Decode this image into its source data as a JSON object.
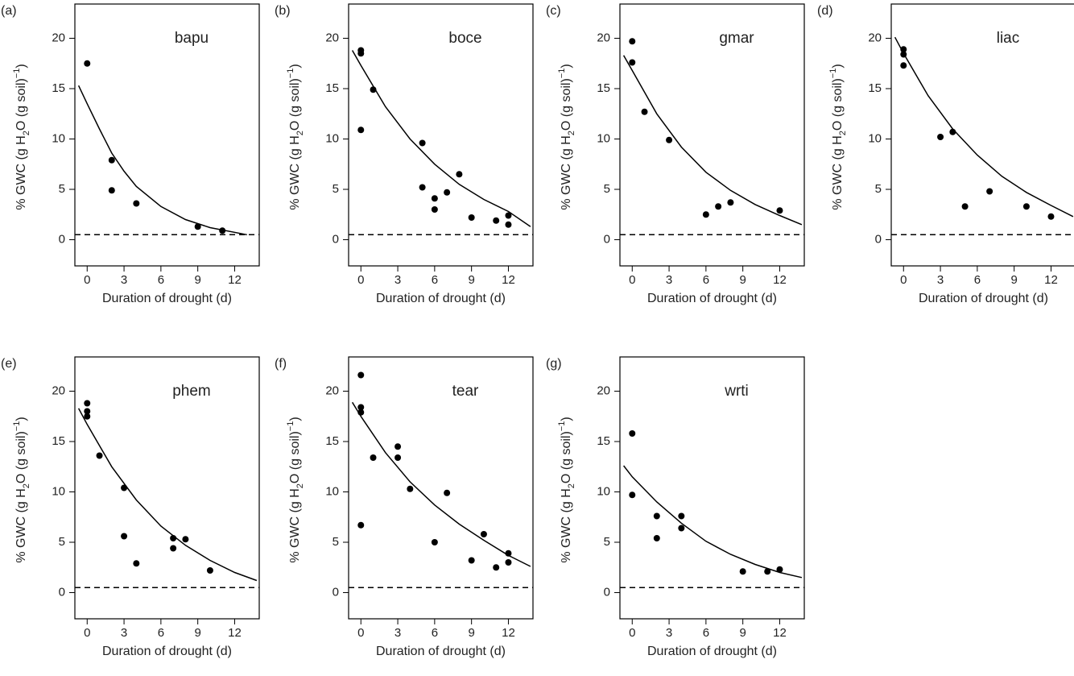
{
  "chart_data": [
    {
      "type": "scatter",
      "panel": "(a)",
      "title": "bapu",
      "x_label": "Duration of drought (d)",
      "y_label": [
        "% GWC (g  H",
        "2",
        "O (g soil)",
        "−1",
        ")"
      ],
      "x": [
        0,
        2,
        2,
        4,
        9,
        11
      ],
      "values": [
        17.5,
        7.9,
        4.9,
        3.6,
        1.3,
        0.9
      ],
      "fit_x": [
        -0.7,
        0,
        1,
        2,
        3,
        4,
        6,
        8,
        10,
        13
      ],
      "fit_values": [
        15.3,
        13.5,
        11,
        8.6,
        6.8,
        5.3,
        3.3,
        2.0,
        1.2,
        0.5
      ],
      "threshold": 0.5,
      "color": "#000000",
      "xlim": [
        -1,
        14
      ],
      "ylim": [
        -2.6,
        23.4
      ],
      "xticks": [
        0,
        3,
        6,
        9,
        12
      ],
      "yticks": [
        0,
        5,
        10,
        15,
        20
      ]
    },
    {
      "type": "scatter",
      "panel": "(b)",
      "title": "boce",
      "x_label": "Duration of drought (d)",
      "y_label": [
        "% GWC (g  H",
        "2",
        "O (g soil)",
        "−1",
        ")"
      ],
      "x": [
        0,
        0,
        0,
        1,
        5,
        5,
        6,
        6,
        7,
        8,
        9,
        11,
        12,
        12
      ],
      "values": [
        18.8,
        18.5,
        10.9,
        14.9,
        9.6,
        5.2,
        4.1,
        3.0,
        4.7,
        6.5,
        2.2,
        1.9,
        2.4,
        1.5
      ],
      "fit_x": [
        -0.7,
        0,
        2,
        4,
        6,
        8,
        10,
        12,
        13.8
      ],
      "fit_values": [
        18.8,
        17.3,
        13.2,
        10,
        7.5,
        5.5,
        4.0,
        2.8,
        1.3
      ],
      "threshold": 0.5,
      "color": "#000000",
      "xlim": [
        -1,
        14
      ],
      "ylim": [
        -2.6,
        23.4
      ],
      "xticks": [
        0,
        3,
        6,
        9,
        12
      ],
      "yticks": [
        0,
        5,
        10,
        15,
        20
      ]
    },
    {
      "type": "scatter",
      "panel": "(c)",
      "title": "gmar",
      "x_label": "Duration of drought (d)",
      "y_label": [
        "% GWC (g  H",
        "2",
        "O (g soil)",
        "−1",
        ")"
      ],
      "x": [
        0,
        0,
        1,
        3,
        6,
        7,
        8,
        12
      ],
      "values": [
        19.7,
        17.6,
        12.7,
        9.9,
        2.5,
        3.3,
        3.7,
        2.9
      ],
      "fit_x": [
        -0.7,
        0,
        2,
        4,
        6,
        8,
        10,
        12,
        13.8
      ],
      "fit_values": [
        18.3,
        16.8,
        12.5,
        9.2,
        6.7,
        4.9,
        3.5,
        2.4,
        1.5
      ],
      "threshold": 0.5,
      "color": "#000000",
      "xlim": [
        -1,
        14
      ],
      "ylim": [
        -2.6,
        23.4
      ],
      "xticks": [
        0,
        3,
        6,
        9,
        12
      ],
      "yticks": [
        0,
        5,
        10,
        15,
        20
      ]
    },
    {
      "type": "scatter",
      "panel": "(d)",
      "title": "liac",
      "x_label": "Duration of drought (d)",
      "y_label": [
        "% GWC (g  H",
        "2",
        "O (g soil)",
        "−1",
        ")"
      ],
      "x": [
        0,
        0,
        0,
        3,
        4,
        5,
        7,
        10,
        12
      ],
      "values": [
        18.9,
        18.4,
        17.3,
        10.2,
        10.7,
        3.3,
        4.8,
        3.3,
        2.3
      ],
      "fit_x": [
        -0.7,
        0,
        2,
        4,
        6,
        8,
        10,
        12,
        13.8
      ],
      "fit_values": [
        20.1,
        18.5,
        14.3,
        11,
        8.4,
        6.3,
        4.7,
        3.4,
        2.3
      ],
      "threshold": 0.5,
      "color": "#000000",
      "xlim": [
        -1,
        14
      ],
      "ylim": [
        -2.6,
        23.4
      ],
      "xticks": [
        0,
        3,
        6,
        9,
        12
      ],
      "yticks": [
        0,
        5,
        10,
        15,
        20
      ]
    },
    {
      "type": "scatter",
      "panel": "(e)",
      "title": "phem",
      "x_label": "Duration of drought (d)",
      "y_label": [
        "% GWC (g  H",
        "2",
        "O (g soil)",
        "−1",
        ")"
      ],
      "x": [
        0,
        0,
        0,
        1,
        3,
        3,
        4,
        7,
        7,
        8,
        10
      ],
      "values": [
        18.8,
        18.0,
        17.5,
        13.6,
        10.4,
        5.6,
        2.9,
        5.4,
        4.4,
        5.3,
        2.2
      ],
      "fit_x": [
        -0.7,
        0,
        2,
        4,
        6,
        8,
        10,
        12,
        13.8
      ],
      "fit_values": [
        18.3,
        16.7,
        12.5,
        9.2,
        6.6,
        4.7,
        3.2,
        2.0,
        1.2
      ],
      "threshold": 0.5,
      "color": "#000000",
      "xlim": [
        -1,
        14
      ],
      "ylim": [
        -2.6,
        23.4
      ],
      "xticks": [
        0,
        3,
        6,
        9,
        12
      ],
      "yticks": [
        0,
        5,
        10,
        15,
        20
      ]
    },
    {
      "type": "scatter",
      "panel": "(f)",
      "title": "tear",
      "x_label": "Duration of drought (d)",
      "y_label": [
        "% GWC (g  H",
        "2",
        "O (g soil)",
        "−1",
        ")"
      ],
      "x": [
        0,
        0,
        0,
        0,
        1,
        3,
        3,
        4,
        6,
        7,
        9,
        10,
        11,
        12,
        12
      ],
      "values": [
        21.6,
        18.4,
        17.9,
        6.7,
        13.4,
        14.5,
        13.4,
        10.3,
        5.0,
        9.9,
        3.2,
        5.8,
        2.5,
        3.9,
        3.0
      ],
      "fit_x": [
        -0.7,
        0,
        2,
        4,
        6,
        8,
        10,
        12,
        13.8
      ],
      "fit_values": [
        18.9,
        17.5,
        13.9,
        11,
        8.7,
        6.8,
        5.2,
        3.7,
        2.6
      ],
      "threshold": 0.5,
      "color": "#000000",
      "xlim": [
        -1,
        14
      ],
      "ylim": [
        -2.6,
        23.4
      ],
      "xticks": [
        0,
        3,
        6,
        9,
        12
      ],
      "yticks": [
        0,
        5,
        10,
        15,
        20
      ]
    },
    {
      "type": "scatter",
      "panel": "(g)",
      "title": "wrti",
      "x_label": "Duration of drought (d)",
      "y_label": [
        "% GWC (g  H",
        "2",
        "O (g soil)",
        "−1",
        ")"
      ],
      "x": [
        0,
        0,
        2,
        2,
        4,
        4,
        9,
        11,
        12
      ],
      "values": [
        15.8,
        9.7,
        7.6,
        5.4,
        7.6,
        6.4,
        2.1,
        2.1,
        2.3
      ],
      "fit_x": [
        -0.7,
        0,
        2,
        4,
        6,
        8,
        10,
        12,
        13.8
      ],
      "fit_values": [
        12.6,
        11.5,
        9,
        6.9,
        5.1,
        3.8,
        2.8,
        2.0,
        1.5
      ],
      "threshold": 0.5,
      "color": "#000000",
      "xlim": [
        -1,
        14
      ],
      "ylim": [
        -2.6,
        23.4
      ],
      "xticks": [
        0,
        3,
        6,
        9,
        12
      ],
      "yticks": [
        0,
        5,
        10,
        15,
        20
      ]
    }
  ]
}
